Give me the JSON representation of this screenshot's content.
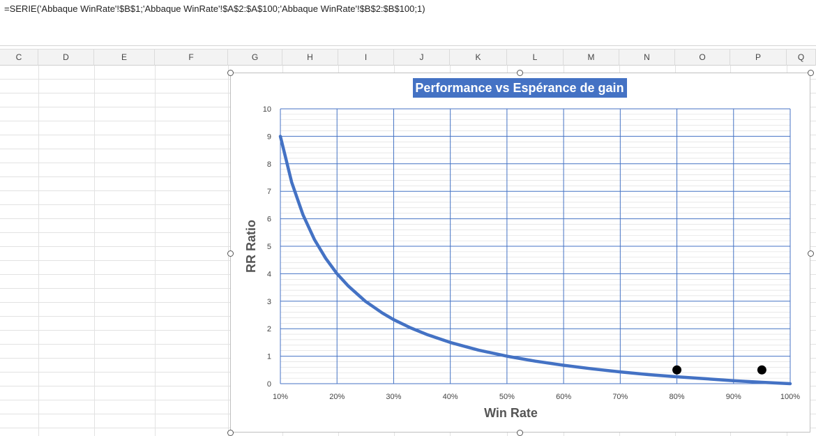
{
  "formula_bar": {
    "text": "=SERIE('Abbaque WinRate'!$B$1;'Abbaque WinRate'!$A$2:$A$100;'Abbaque WinRate'!$B$2:$B$100;1)"
  },
  "column_headers": [
    "C",
    "D",
    "E",
    "F",
    "G",
    "H",
    "I",
    "J",
    "K",
    "L",
    "M",
    "N",
    "O",
    "P",
    "Q"
  ],
  "colors": {
    "curve": "#4472c4",
    "gridline": "#4472c4",
    "title_bg": "#4472c4",
    "points": "#000000"
  },
  "chart_data": {
    "type": "scatter",
    "title": "Performance vs Espérance de gain",
    "xlabel": "Win Rate",
    "ylabel": "RR Ratio",
    "xlim": [
      0.1,
      1.0
    ],
    "ylim": [
      0,
      10
    ],
    "x_tick_labels": [
      "10%",
      "20%",
      "30%",
      "40%",
      "50%",
      "60%",
      "70%",
      "80%",
      "90%",
      "100%"
    ],
    "y_tick_labels": [
      "0",
      "1",
      "2",
      "3",
      "4",
      "5",
      "6",
      "7",
      "8",
      "9",
      "10"
    ],
    "grid": true,
    "series": [
      {
        "type": "line",
        "x": [
          0.1,
          0.12,
          0.14,
          0.16,
          0.18,
          0.2,
          0.22,
          0.25,
          0.28,
          0.3,
          0.33,
          0.36,
          0.4,
          0.45,
          0.5,
          0.55,
          0.6,
          0.65,
          0.7,
          0.75,
          0.8,
          0.85,
          0.9,
          0.95,
          1.0
        ],
        "y": [
          9.0,
          7.33,
          6.14,
          5.25,
          4.56,
          4.0,
          3.55,
          3.0,
          2.57,
          2.33,
          2.03,
          1.78,
          1.5,
          1.22,
          1.0,
          0.82,
          0.67,
          0.54,
          0.43,
          0.33,
          0.25,
          0.18,
          0.11,
          0.05,
          0.0
        ]
      },
      {
        "type": "points",
        "x": [
          0.8,
          0.95
        ],
        "y": [
          0.5,
          0.5
        ]
      }
    ]
  }
}
